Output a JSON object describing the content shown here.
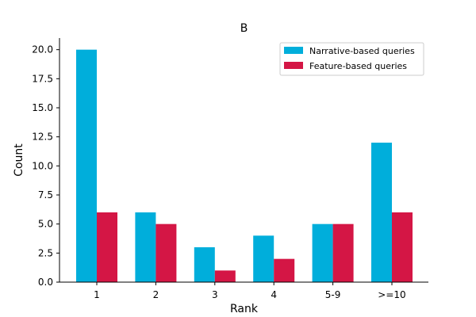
{
  "chart_data": {
    "type": "bar",
    "title": "B",
    "xlabel": "Rank",
    "ylabel": "Count",
    "categories": [
      "1",
      "2",
      "3",
      "4",
      "5-9",
      ">=10"
    ],
    "ylim": [
      0,
      21
    ],
    "yticks": [
      "0.0",
      "2.5",
      "5.0",
      "7.5",
      "10.0",
      "12.5",
      "15.0",
      "17.5",
      "20.0"
    ],
    "grid": false,
    "legend_position": "top-right",
    "series": [
      {
        "name": "Narrative-based queries",
        "color": "#00AEDB",
        "values": [
          20,
          6,
          3,
          4,
          5,
          12
        ]
      },
      {
        "name": "Feature-based queries",
        "color": "#D41645",
        "values": [
          6,
          5,
          1,
          2,
          5,
          6
        ]
      }
    ]
  }
}
